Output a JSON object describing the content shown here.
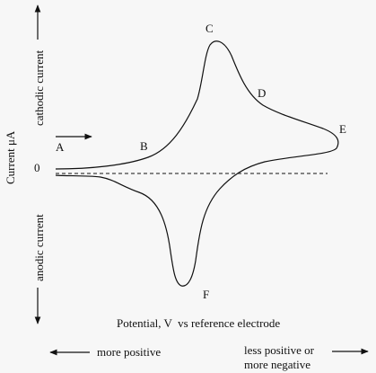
{
  "chart_data": {
    "type": "line",
    "title": "",
    "xlabel": "Potential, V  vs reference electrode",
    "ylabel": "Current μA",
    "cathodic_label": "cathodic current",
    "anodic_label": "anodic current",
    "zero_label": "0",
    "left_direction_label": "more positive",
    "right_direction_label_1": "less positive or",
    "right_direction_label_2": "more negative",
    "xlim": [
      0,
      1
    ],
    "ylim": [
      -1.05,
      1.05
    ],
    "x_direction": "increasing to the right = more negative potential",
    "baseline": 0,
    "series": [
      {
        "values_forward": [
          [
            0.0,
            0.02
          ],
          [
            0.1,
            0.03
          ],
          [
            0.2,
            0.07
          ],
          [
            0.25,
            0.12
          ],
          [
            0.3,
            0.22
          ],
          [
            0.36,
            0.5
          ],
          [
            0.4,
            0.85
          ],
          [
            0.42,
            1.0
          ],
          [
            0.46,
            0.85
          ],
          [
            0.5,
            0.57
          ],
          [
            0.56,
            0.44
          ],
          [
            0.66,
            0.33
          ],
          [
            0.74,
            0.25
          ],
          [
            0.79,
            0.18
          ]
        ],
        "values_reverse": [
          [
            0.79,
            0.18
          ],
          [
            0.72,
            0.1
          ],
          [
            0.62,
            0.07
          ],
          [
            0.55,
            0.0
          ],
          [
            0.5,
            -0.12
          ],
          [
            0.45,
            -0.4
          ],
          [
            0.42,
            -0.75
          ],
          [
            0.4,
            -0.88
          ],
          [
            0.37,
            -0.82
          ],
          [
            0.34,
            -0.52
          ],
          [
            0.3,
            -0.22
          ],
          [
            0.2,
            -0.1
          ],
          [
            0.15,
            -0.07
          ],
          [
            0.08,
            -0.01
          ],
          [
            0.0,
            -0.02
          ]
        ]
      }
    ],
    "points": [
      {
        "label": "A",
        "x": 0.03,
        "y": 0.17
      },
      {
        "label": "B",
        "x": 0.31,
        "y": 0.17
      },
      {
        "label": "C",
        "x": 0.54,
        "y": 1.02
      },
      {
        "label": "D",
        "x": 0.68,
        "y": 0.54
      },
      {
        "label": "E",
        "x": 0.95,
        "y": 0.31
      },
      {
        "label": "F",
        "x": 0.52,
        "y": -0.86
      }
    ],
    "grid": false,
    "legend": "none"
  }
}
